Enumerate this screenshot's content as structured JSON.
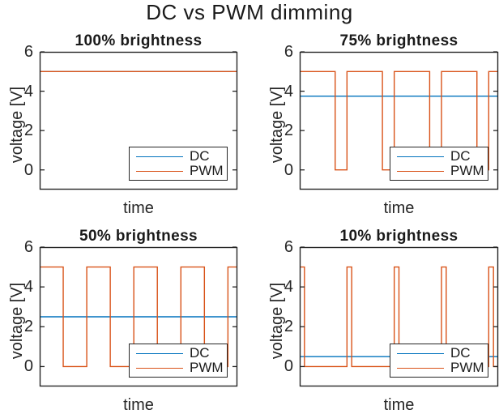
{
  "figure": {
    "title": "DC vs PWM dimming",
    "background": "#ffffff",
    "axis_color": "#262626",
    "dc_color": "#0072BD",
    "pwm_color": "#D95319"
  },
  "chart_data": [
    {
      "type": "line",
      "title": "100% brightness",
      "xlabel": "time",
      "ylabel": "voltage [V]",
      "xlim": [
        0,
        4.2
      ],
      "ylim": [
        -1,
        6
      ],
      "yticks": [
        0,
        2,
        4,
        6
      ],
      "xticks": [],
      "grid": false,
      "legend_position": "southeast",
      "series": [
        {
          "name": "DC",
          "color": "#0072BD",
          "type": "constant",
          "value": 5
        },
        {
          "name": "PWM",
          "color": "#D95319",
          "type": "square_wave",
          "high": 5,
          "low": 0,
          "period": 1,
          "duty_cycle": 1.0
        }
      ]
    },
    {
      "type": "line",
      "title": "75% brightness",
      "xlabel": "time",
      "ylabel": "voltage [V]",
      "xlim": [
        0,
        4.2
      ],
      "ylim": [
        -1,
        6
      ],
      "yticks": [
        0,
        2,
        4,
        6
      ],
      "xticks": [],
      "grid": false,
      "legend_position": "southeast",
      "series": [
        {
          "name": "DC",
          "color": "#0072BD",
          "type": "constant",
          "value": 3.75
        },
        {
          "name": "PWM",
          "color": "#D95319",
          "type": "square_wave",
          "high": 5,
          "low": 0,
          "period": 1,
          "duty_cycle": 0.75
        }
      ]
    },
    {
      "type": "line",
      "title": "50% brightness",
      "xlabel": "time",
      "ylabel": "voltage [V]",
      "xlim": [
        0,
        4.2
      ],
      "ylim": [
        -1,
        6
      ],
      "yticks": [
        0,
        2,
        4,
        6
      ],
      "xticks": [],
      "grid": false,
      "legend_position": "southeast",
      "series": [
        {
          "name": "DC",
          "color": "#0072BD",
          "type": "constant",
          "value": 2.5
        },
        {
          "name": "PWM",
          "color": "#D95319",
          "type": "square_wave",
          "high": 5,
          "low": 0,
          "period": 1,
          "duty_cycle": 0.5
        }
      ]
    },
    {
      "type": "line",
      "title": "10% brightness",
      "xlabel": "time",
      "ylabel": "voltage [V]",
      "xlim": [
        0,
        4.2
      ],
      "ylim": [
        -1,
        6
      ],
      "yticks": [
        0,
        2,
        4,
        6
      ],
      "xticks": [],
      "grid": false,
      "legend_position": "southeast",
      "series": [
        {
          "name": "DC",
          "color": "#0072BD",
          "type": "constant",
          "value": 0.5
        },
        {
          "name": "PWM",
          "color": "#D95319",
          "type": "square_wave",
          "high": 5,
          "low": 0,
          "period": 1,
          "duty_cycle": 0.1
        }
      ]
    }
  ]
}
